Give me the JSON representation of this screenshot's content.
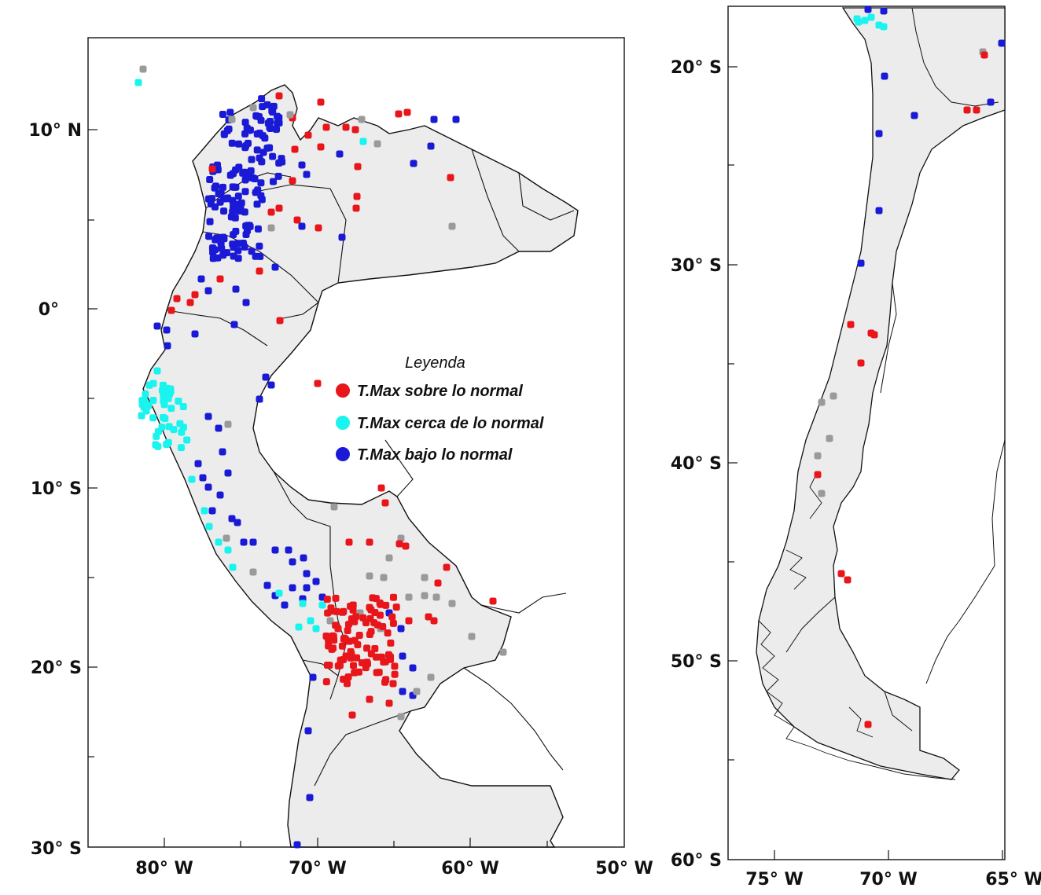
{
  "legend": {
    "title": "Leyenda",
    "items": [
      {
        "label": "T.Max sobre lo normal",
        "color": "#e8161b"
      },
      {
        "label": "T.Max cerca de lo normal",
        "color": "#19f4ef"
      },
      {
        "label": "T.Max bajo lo normal",
        "color": "#1a1ad6"
      }
    ]
  },
  "other_station_color": "#9a9a9a",
  "land_color": "#ececec",
  "left_map": {
    "y_ticks": [
      "10° N",
      "0°",
      "10° S",
      "20° S",
      "30° S"
    ],
    "x_ticks": [
      "80° W",
      "70° W",
      "60° W",
      "50° W"
    ]
  },
  "right_map": {
    "y_ticks": [
      "20° S",
      "30° S",
      "40° S",
      "50° S",
      "60° S"
    ],
    "x_ticks": [
      "75° W",
      "70° W",
      "65° W"
    ]
  }
}
